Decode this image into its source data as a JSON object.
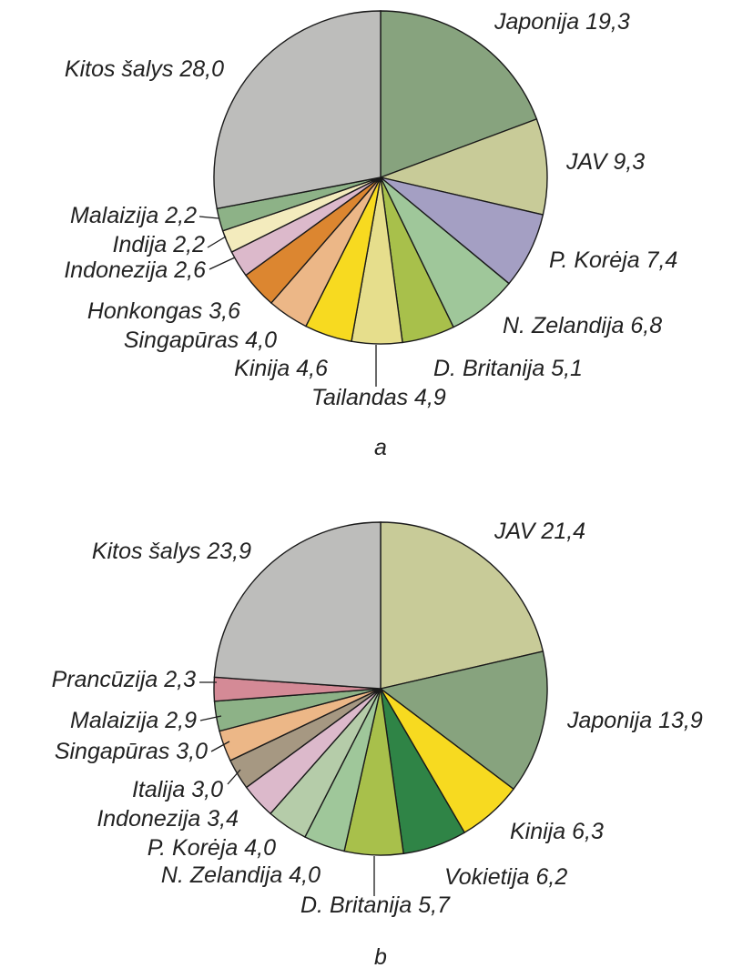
{
  "chart_data": [
    {
      "type": "pie",
      "caption": "a",
      "start": "12 o'clock, clockwise",
      "slices": [
        {
          "label": "Japonija 19,3",
          "name": "Japonija",
          "value": 19.3,
          "color": "#87a37e"
        },
        {
          "label": "JAV 9,3",
          "name": "JAV",
          "value": 9.3,
          "color": "#c8cb98"
        },
        {
          "label": "P. Korėja 7,4",
          "name": "P. Korėja",
          "value": 7.4,
          "color": "#a49fc3"
        },
        {
          "label": "N. Zelandija 6,8",
          "name": "N. Zelandija",
          "value": 6.8,
          "color": "#9fc79a"
        },
        {
          "label": "D. Britanija 5,1",
          "name": "D. Britanija",
          "value": 5.1,
          "color": "#a8c04b"
        },
        {
          "label": "Tailandas 4,9",
          "name": "Tailandas",
          "value": 4.9,
          "color": "#e6de8c"
        },
        {
          "label": "Kinija 4,6",
          "name": "Kinija",
          "value": 4.6,
          "color": "#f7da20"
        },
        {
          "label": "Singapūras 4,0",
          "name": "Singapūras",
          "value": 4.0,
          "color": "#ecb787"
        },
        {
          "label": "Honkongas 3,6",
          "name": "Honkongas",
          "value": 3.6,
          "color": "#dc8630"
        },
        {
          "label": "Indonezija 2,6",
          "name": "Indonezija",
          "value": 2.6,
          "color": "#dcb9cb"
        },
        {
          "label": "Indija 2,2",
          "name": "Indija",
          "value": 2.2,
          "color": "#f3ebbd"
        },
        {
          "label": "Malaizija 2,2",
          "name": "Malaizija",
          "value": 2.2,
          "color": "#8db287"
        },
        {
          "label": "Kitos šalys 28,0",
          "name": "Kitos šalys",
          "value": 28.0,
          "color": "#bdbdbb"
        }
      ]
    },
    {
      "type": "pie",
      "caption": "b",
      "start": "12 o'clock, clockwise",
      "slices": [
        {
          "label": "JAV 21,4",
          "name": "JAV",
          "value": 21.4,
          "color": "#c8cb98"
        },
        {
          "label": "Japonija 13,9",
          "name": "Japonija",
          "value": 13.9,
          "color": "#87a37e"
        },
        {
          "label": "Kinija 6,3",
          "name": "Kinija",
          "value": 6.3,
          "color": "#f7da20"
        },
        {
          "label": "Vokietija 6,2",
          "name": "Vokietija",
          "value": 6.2,
          "color": "#2f8446"
        },
        {
          "label": "D. Britanija 5,7",
          "name": "D. Britanija",
          "value": 5.7,
          "color": "#a8c04b"
        },
        {
          "label": "N. Zelandija 4,0",
          "name": "N. Zelandija",
          "value": 4.0,
          "color": "#9fc79a"
        },
        {
          "label": "P. Korėja 4,0",
          "name": "P. Korėja",
          "value": 4.0,
          "color": "#b5cca9"
        },
        {
          "label": "Indonezija 3,4",
          "name": "Indonezija",
          "value": 3.4,
          "color": "#dcb9cb"
        },
        {
          "label": "Italija 3,0",
          "name": "Italija",
          "value": 3.0,
          "color": "#a69882"
        },
        {
          "label": "Singapūras 3,0",
          "name": "Singapūras",
          "value": 3.0,
          "color": "#ecb787"
        },
        {
          "label": "Malaizija 2,9",
          "name": "Malaizija",
          "value": 2.9,
          "color": "#8db287"
        },
        {
          "label": "Prancūzija 2,3",
          "name": "Prancūzija",
          "value": 2.3,
          "color": "#d48a96"
        },
        {
          "label": "Kitos šalys 23,9",
          "name": "Kitos šalys",
          "value": 23.9,
          "color": "#bdbdbb"
        }
      ]
    }
  ]
}
